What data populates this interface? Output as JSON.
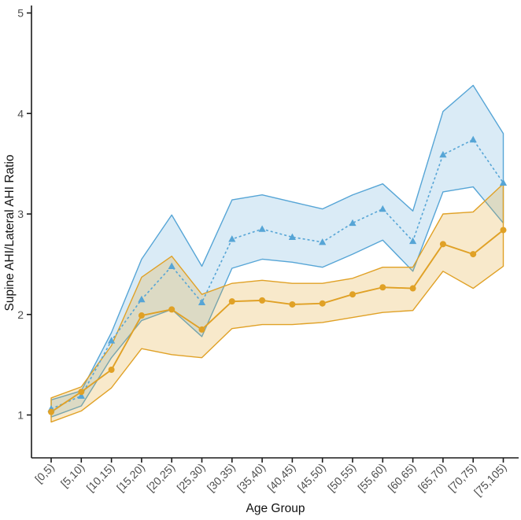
{
  "figure": {
    "xlabel": "Age Group",
    "ylabel": "Supine AHI/Lateral AHI Ratio"
  },
  "chart_data": {
    "type": "line",
    "title": "",
    "xlabel": "Age Group",
    "ylabel": "Supine AHI/Lateral AHI Ratio",
    "grid": false,
    "legend": "none",
    "background": "#ffffff",
    "axis_color": "#1a1a1a",
    "tick_text_color": "#4d4d4d",
    "categories": [
      "[0,5)",
      "[5,10)",
      "[10,15)",
      "[15,20)",
      "[20,25)",
      "[25,30)",
      "[30,35)",
      "[35,40)",
      "[40,45)",
      "[45,50)",
      "[50,55)",
      "[55,60)",
      "[60,65)",
      "[65,70)",
      "[70,75)",
      "[75,105)"
    ],
    "yticks": [
      1,
      2,
      3,
      4,
      5
    ],
    "ylim": [
      0.58,
      5.06
    ],
    "series": [
      {
        "name": "blue-dashed-triangle-series",
        "line_style": "dashed",
        "marker": "triangle",
        "color": "#56a5d6",
        "band_fill_rgba": "rgba(86,165,214,0.22)",
        "mean": [
          1.06,
          1.19,
          1.74,
          2.15,
          2.48,
          2.12,
          2.75,
          2.85,
          2.77,
          2.72,
          2.91,
          3.05,
          2.73,
          3.59,
          3.74,
          3.31
        ],
        "upper": [
          1.15,
          1.24,
          1.82,
          2.55,
          2.99,
          2.48,
          3.14,
          3.19,
          3.12,
          3.05,
          3.19,
          3.3,
          3.03,
          4.02,
          4.28,
          3.8
        ],
        "lower": [
          0.98,
          1.09,
          1.57,
          1.94,
          2.05,
          1.78,
          2.46,
          2.55,
          2.52,
          2.47,
          2.6,
          2.74,
          2.43,
          3.22,
          3.27,
          2.91
        ]
      },
      {
        "name": "orange-solid-circle-series",
        "line_style": "solid",
        "marker": "circle",
        "color": "#e0a126",
        "band_fill_rgba": "rgba(224,161,38,0.24)",
        "mean": [
          1.03,
          1.23,
          1.45,
          1.99,
          2.05,
          1.85,
          2.13,
          2.14,
          2.1,
          2.11,
          2.2,
          2.27,
          2.26,
          2.7,
          2.6,
          2.84
        ],
        "upper": [
          1.17,
          1.28,
          1.69,
          2.37,
          2.58,
          2.2,
          2.31,
          2.34,
          2.31,
          2.31,
          2.36,
          2.47,
          2.47,
          3.0,
          3.02,
          3.3
        ],
        "lower": [
          0.93,
          1.04,
          1.27,
          1.66,
          1.6,
          1.57,
          1.86,
          1.9,
          1.9,
          1.92,
          1.97,
          2.02,
          2.04,
          2.43,
          2.26,
          2.48
        ]
      }
    ]
  }
}
